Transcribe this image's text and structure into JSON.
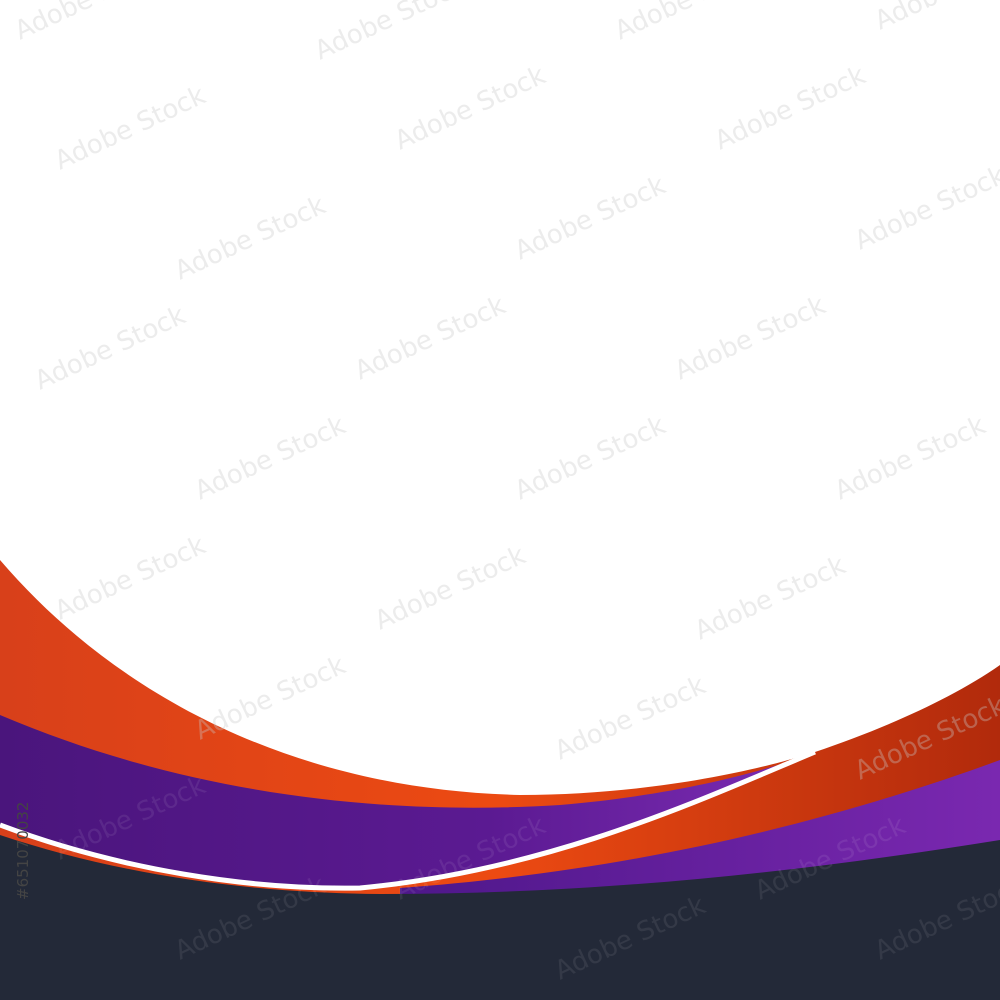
{
  "watermark": "Adobe Stock",
  "image_id": "#651070032"
}
